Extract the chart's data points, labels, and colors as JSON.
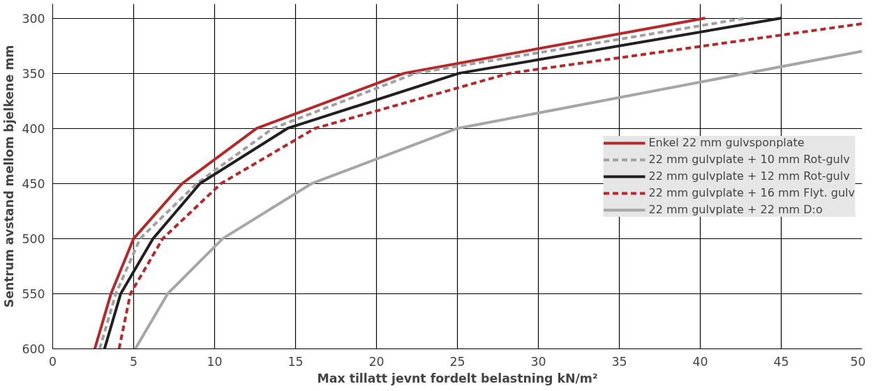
{
  "chart_data": {
    "type": "line",
    "xlabel": "Max tillatt jevnt fordelt belastning kN/m²",
    "ylabel": "Sentrum avstand mellom bjelkene mm",
    "xlim": [
      0,
      50
    ],
    "ylim": [
      600,
      287
    ],
    "xticks": [
      0,
      5,
      10,
      15,
      20,
      25,
      30,
      35,
      40,
      45,
      50
    ],
    "yticks": [
      300,
      350,
      400,
      450,
      500,
      550,
      600
    ],
    "grid": true,
    "legend": "center right",
    "series": [
      {
        "name": "Enkel 22 mm gulvsponplate",
        "color": "#b5292a",
        "line_style": "solid",
        "x": [
          2.6,
          3.6,
          5.0,
          8.0,
          12.6,
          21.7,
          40.3
        ],
        "values": [
          600,
          550,
          500,
          450,
          400,
          350,
          300
        ]
      },
      {
        "name": "22 mm gulvplate + 10 mm Rot-gulv",
        "color": "#a0a0a0",
        "line_style": "dashed",
        "x": [
          2.9,
          3.9,
          5.4,
          8.9,
          13.6,
          22.4,
          42.8
        ],
        "values": [
          600,
          550,
          500,
          450,
          400,
          350,
          300
        ]
      },
      {
        "name": "22 mm gulvplate + 12 mm Rot-gulv",
        "color": "#231f20",
        "line_style": "solid",
        "x": [
          3.2,
          4.2,
          6.2,
          9.1,
          14.5,
          25.1,
          45.0
        ],
        "values": [
          600,
          550,
          500,
          450,
          400,
          350,
          300
        ]
      },
      {
        "name": "22 mm gulvplate + 16 mm Flyt. gulv",
        "color": "#b5292a",
        "line_style": "dashed",
        "x": [
          4.1,
          4.8,
          6.8,
          10.4,
          16.2,
          28.2,
          50.0
        ],
        "values": [
          600,
          550,
          500,
          450,
          400,
          350,
          305
        ]
      },
      {
        "name": "22 mm gulvplate + 22 mm D:o",
        "color": "#a6a6a6",
        "line_style": "solid",
        "x": [
          5.1,
          7.1,
          10.5,
          16.0,
          25.0,
          50.0
        ],
        "values": [
          600,
          550,
          500,
          450,
          400,
          330
        ]
      }
    ]
  }
}
